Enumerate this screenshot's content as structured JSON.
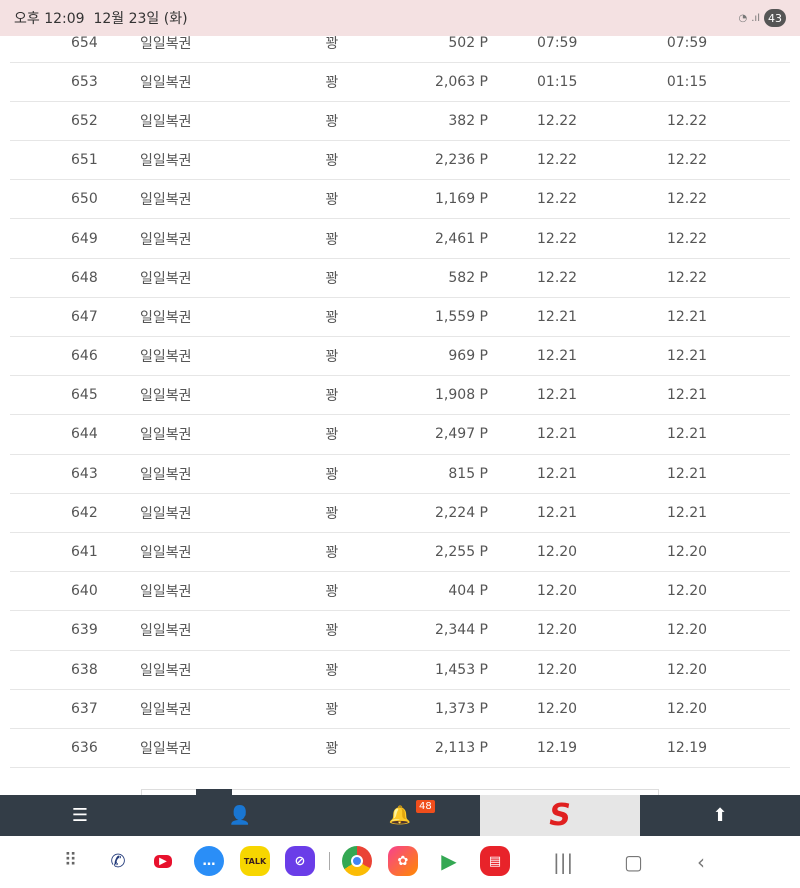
{
  "status_bar": {
    "time": "오후 12:09",
    "date": "12월 23일 (화)",
    "battery": "43"
  },
  "rows": [
    {
      "no": "654",
      "name": "일일복권",
      "result": "꽝",
      "points": "502 P",
      "date1": "07:59",
      "date2": "07:59"
    },
    {
      "no": "653",
      "name": "일일복권",
      "result": "꽝",
      "points": "2,063 P",
      "date1": "01:15",
      "date2": "01:15"
    },
    {
      "no": "652",
      "name": "일일복권",
      "result": "꽝",
      "points": "382 P",
      "date1": "12.22",
      "date2": "12.22"
    },
    {
      "no": "651",
      "name": "일일복권",
      "result": "꽝",
      "points": "2,236 P",
      "date1": "12.22",
      "date2": "12.22"
    },
    {
      "no": "650",
      "name": "일일복권",
      "result": "꽝",
      "points": "1,169 P",
      "date1": "12.22",
      "date2": "12.22"
    },
    {
      "no": "649",
      "name": "일일복권",
      "result": "꽝",
      "points": "2,461 P",
      "date1": "12.22",
      "date2": "12.22"
    },
    {
      "no": "648",
      "name": "일일복권",
      "result": "꽝",
      "points": "582 P",
      "date1": "12.22",
      "date2": "12.22"
    },
    {
      "no": "647",
      "name": "일일복권",
      "result": "꽝",
      "points": "1,559 P",
      "date1": "12.21",
      "date2": "12.21"
    },
    {
      "no": "646",
      "name": "일일복권",
      "result": "꽝",
      "points": "969 P",
      "date1": "12.21",
      "date2": "12.21"
    },
    {
      "no": "645",
      "name": "일일복권",
      "result": "꽝",
      "points": "1,908 P",
      "date1": "12.21",
      "date2": "12.21"
    },
    {
      "no": "644",
      "name": "일일복권",
      "result": "꽝",
      "points": "2,497 P",
      "date1": "12.21",
      "date2": "12.21"
    },
    {
      "no": "643",
      "name": "일일복권",
      "result": "꽝",
      "points": "815 P",
      "date1": "12.21",
      "date2": "12.21"
    },
    {
      "no": "642",
      "name": "일일복권",
      "result": "꽝",
      "points": "2,224 P",
      "date1": "12.21",
      "date2": "12.21"
    },
    {
      "no": "641",
      "name": "일일복권",
      "result": "꽝",
      "points": "2,255 P",
      "date1": "12.20",
      "date2": "12.20"
    },
    {
      "no": "640",
      "name": "일일복권",
      "result": "꽝",
      "points": "404 P",
      "date1": "12.20",
      "date2": "12.20"
    },
    {
      "no": "639",
      "name": "일일복권",
      "result": "꽝",
      "points": "2,344 P",
      "date1": "12.20",
      "date2": "12.20"
    },
    {
      "no": "638",
      "name": "일일복권",
      "result": "꽝",
      "points": "1,453 P",
      "date1": "12.20",
      "date2": "12.20"
    },
    {
      "no": "637",
      "name": "일일복권",
      "result": "꽝",
      "points": "1,373 P",
      "date1": "12.20",
      "date2": "12.20"
    },
    {
      "no": "636",
      "name": "일일복권",
      "result": "꽝",
      "points": "2,113 P",
      "date1": "12.19",
      "date2": "12.19"
    }
  ],
  "bottom_bar": {
    "notification_count": "48",
    "logo": "S",
    "bar_color": "#333d47",
    "logo_color": "#e02020"
  },
  "dock": {
    "icons": [
      "apps-grid-icon",
      "phone-icon",
      "youtube-icon",
      "messages-icon",
      "kakaotalk-icon",
      "internet-icon",
      "chrome-icon",
      "gallery-icon",
      "play-store-icon",
      "notes-icon"
    ],
    "kakao_label": "TALK"
  }
}
